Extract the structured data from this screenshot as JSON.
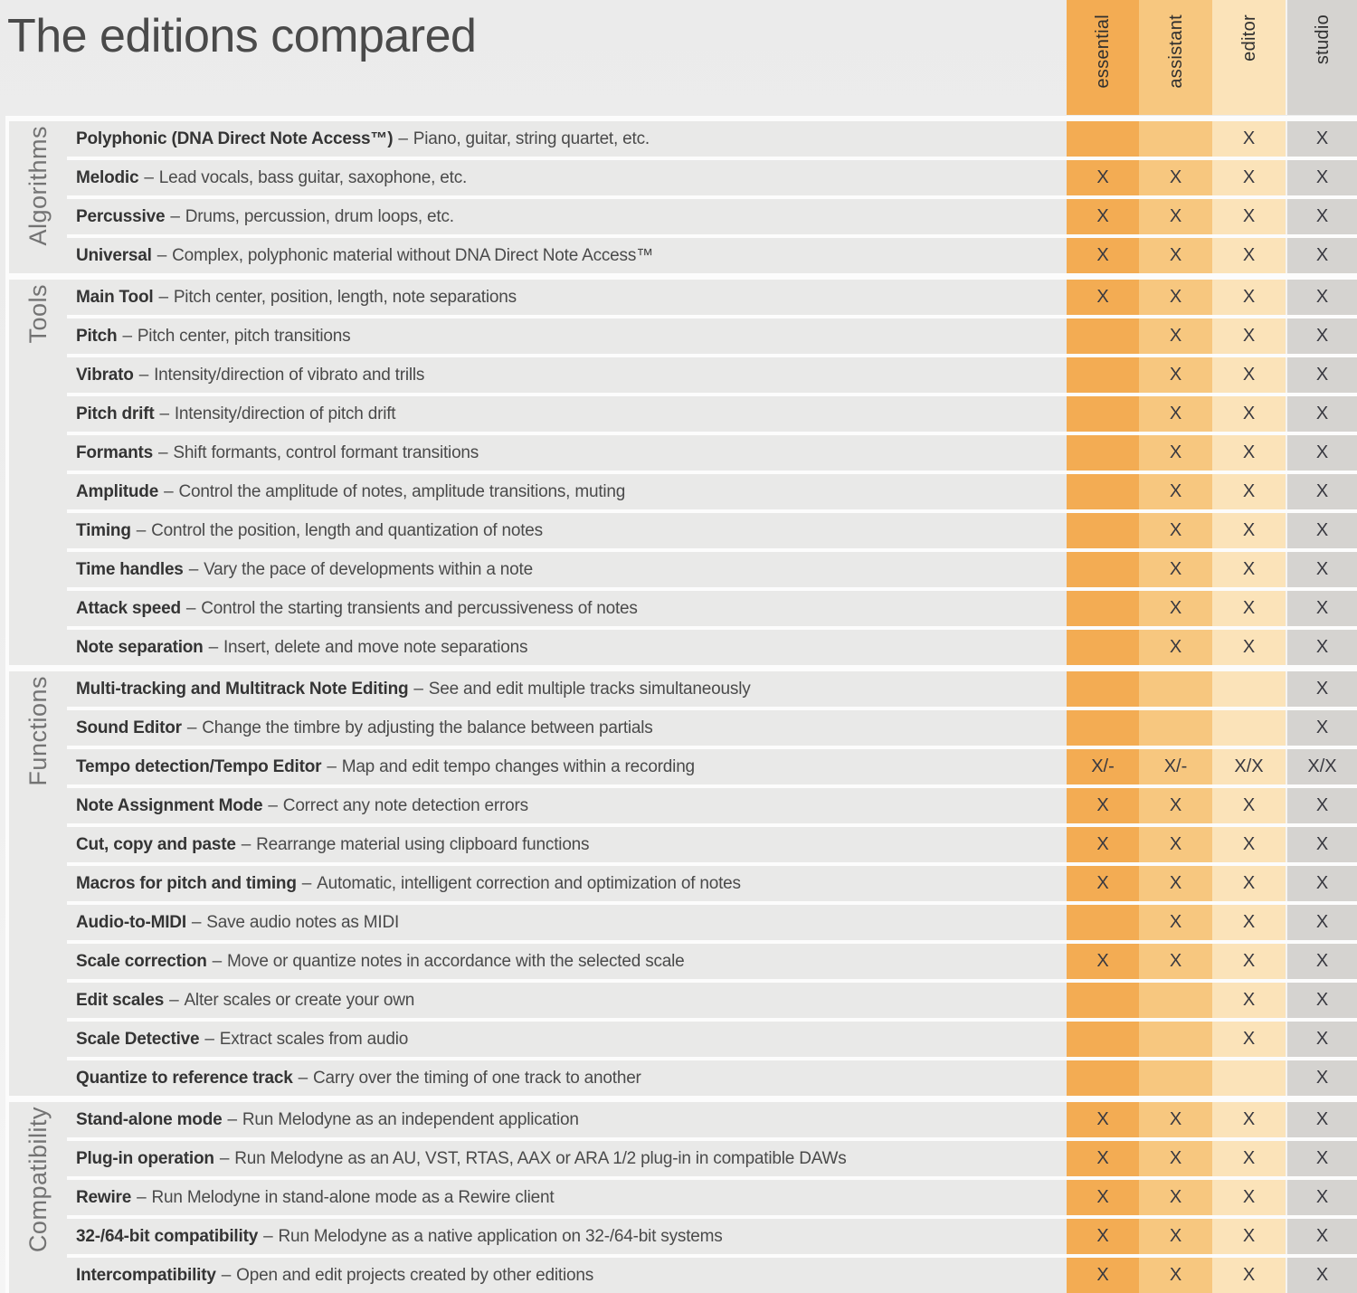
{
  "title": "The editions compared",
  "separator": "–",
  "columns": [
    {
      "id": "essential",
      "label": "essential",
      "color": "#f3ac53"
    },
    {
      "id": "assistant",
      "label": "assistant",
      "color": "#f7c77f"
    },
    {
      "id": "editor",
      "label": "editor",
      "color": "#fbe3b9"
    },
    {
      "id": "studio",
      "label": "studio",
      "color": "#d5d3d0"
    }
  ],
  "colors": {
    "row_background": "#e9e9e8",
    "separator_line": "#fcfcfc",
    "mark": "#393940"
  },
  "groups": [
    {
      "label": "Algorithms",
      "rows": [
        {
          "name": "Polyphonic (DNA Direct Note Access™)",
          "desc": "Piano, guitar, string quartet, etc.",
          "values": [
            "",
            "",
            "X",
            "X"
          ]
        },
        {
          "name": "Melodic",
          "desc": "Lead vocals, bass guitar, saxophone, etc.",
          "values": [
            "X",
            "X",
            "X",
            "X"
          ]
        },
        {
          "name": "Percussive",
          "desc": "Drums, percussion, drum loops, etc.",
          "values": [
            "X",
            "X",
            "X",
            "X"
          ]
        },
        {
          "name": "Universal",
          "desc": "Complex, polyphonic material without DNA Direct Note Access™",
          "values": [
            "X",
            "X",
            "X",
            "X"
          ]
        }
      ]
    },
    {
      "label": "Tools",
      "rows": [
        {
          "name": "Main Tool",
          "desc": "Pitch center, position, length, note separations",
          "values": [
            "X",
            "X",
            "X",
            "X"
          ]
        },
        {
          "name": "Pitch",
          "desc": "Pitch center, pitch transitions",
          "values": [
            "",
            "X",
            "X",
            "X"
          ]
        },
        {
          "name": "Vibrato",
          "desc": "Intensity/direction of vibrato and trills",
          "values": [
            "",
            "X",
            "X",
            "X"
          ]
        },
        {
          "name": "Pitch drift",
          "desc": "Intensity/direction of pitch drift",
          "values": [
            "",
            "X",
            "X",
            "X"
          ]
        },
        {
          "name": "Formants",
          "desc": "Shift formants, control formant transitions",
          "values": [
            "",
            "X",
            "X",
            "X"
          ]
        },
        {
          "name": "Amplitude",
          "desc": "Control the amplitude of notes, amplitude transitions, muting",
          "values": [
            "",
            "X",
            "X",
            "X"
          ]
        },
        {
          "name": "Timing",
          "desc": "Control the position, length and quantization of notes",
          "values": [
            "",
            "X",
            "X",
            "X"
          ]
        },
        {
          "name": "Time handles",
          "desc": "Vary the pace of developments within a note",
          "values": [
            "",
            "X",
            "X",
            "X"
          ]
        },
        {
          "name": "Attack speed",
          "desc": "Control the starting transients and percussiveness of notes",
          "values": [
            "",
            "X",
            "X",
            "X"
          ]
        },
        {
          "name": "Note separation",
          "desc": "Insert, delete and move note separations",
          "values": [
            "",
            "X",
            "X",
            "X"
          ]
        }
      ]
    },
    {
      "label": "Functions",
      "rows": [
        {
          "name": "Multi-tracking and Multitrack Note Editing",
          "desc": "See and edit multiple tracks simultaneously",
          "values": [
            "",
            "",
            "",
            "X"
          ]
        },
        {
          "name": "Sound Editor",
          "desc": "Change the timbre by adjusting the balance between partials",
          "values": [
            "",
            "",
            "",
            "X"
          ]
        },
        {
          "name": "Tempo detection/Tempo Editor",
          "desc": "Map and edit tempo changes within a recording",
          "values": [
            "X/-",
            "X/-",
            "X/X",
            "X/X"
          ]
        },
        {
          "name": "Note Assignment Mode",
          "desc": "Correct any note detection errors",
          "values": [
            "X",
            "X",
            "X",
            "X"
          ]
        },
        {
          "name": "Cut, copy and paste",
          "desc": "Rearrange material using clipboard functions",
          "values": [
            "X",
            "X",
            "X",
            "X"
          ]
        },
        {
          "name": "Macros for pitch and timing",
          "desc": "Automatic, intelligent correction and optimization of notes",
          "values": [
            "X",
            "X",
            "X",
            "X"
          ]
        },
        {
          "name": "Audio-to-MIDI",
          "desc": "Save audio notes as MIDI",
          "values": [
            "",
            "X",
            "X",
            "X"
          ]
        },
        {
          "name": "Scale correction",
          "desc": "Move or quantize notes in accordance with the selected scale",
          "values": [
            "X",
            "X",
            "X",
            "X"
          ]
        },
        {
          "name": "Edit scales",
          "desc": "Alter scales or create your own",
          "values": [
            "",
            "",
            "X",
            "X"
          ]
        },
        {
          "name": "Scale Detective",
          "desc": "Extract scales from audio",
          "values": [
            "",
            "",
            "X",
            "X"
          ]
        },
        {
          "name": "Quantize to reference track",
          "desc": "Carry over the timing of one track to another",
          "values": [
            "",
            "",
            "",
            "X"
          ]
        }
      ]
    },
    {
      "label": "Compatibility",
      "rows": [
        {
          "name": "Stand-alone mode",
          "desc": "Run Melodyne as an independent application",
          "values": [
            "X",
            "X",
            "X",
            "X"
          ]
        },
        {
          "name": "Plug-in operation",
          "desc": "Run Melodyne as an AU, VST, RTAS, AAX or ARA 1/2 plug-in in compatible DAWs",
          "values": [
            "X",
            "X",
            "X",
            "X"
          ]
        },
        {
          "name": "Rewire",
          "desc": "Run Melodyne in stand-alone mode as a Rewire client",
          "values": [
            "X",
            "X",
            "X",
            "X"
          ]
        },
        {
          "name": "32-/64-bit compatibility",
          "desc": "Run Melodyne as a native application on 32-/64-bit systems",
          "values": [
            "X",
            "X",
            "X",
            "X"
          ]
        },
        {
          "name": "Intercompatibility",
          "desc": "Open and edit projects created by other editions",
          "values": [
            "X",
            "X",
            "X",
            "X"
          ]
        }
      ]
    }
  ]
}
